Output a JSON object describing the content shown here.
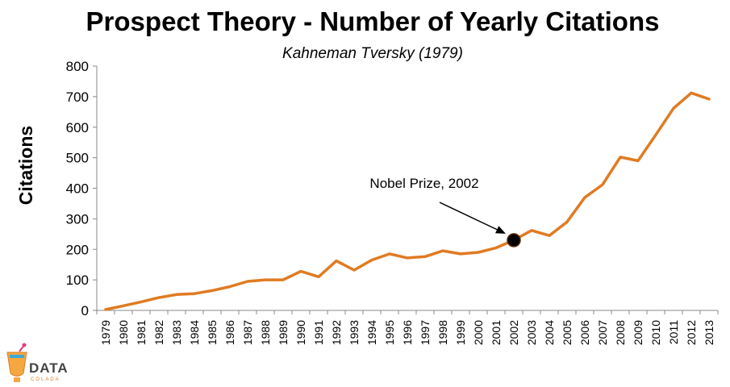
{
  "chart_data": {
    "type": "line",
    "title": "Prospect Theory - Number of Yearly Citations",
    "subtitle": "Kahneman Tversky (1979)",
    "xlabel": "",
    "ylabel": "Citations",
    "ylim": [
      0,
      800
    ],
    "yticks": [
      "0",
      "100",
      "200",
      "300",
      "400",
      "500",
      "600",
      "700",
      "800"
    ],
    "categories": [
      "1979",
      "1980",
      "1981",
      "1982",
      "1983",
      "1984",
      "1985",
      "1986",
      "1987",
      "1988",
      "1989",
      "1990",
      "1991",
      "1992",
      "1993",
      "1994",
      "1995",
      "1996",
      "1997",
      "1998",
      "1999",
      "2000",
      "2001",
      "2002",
      "2003",
      "2004",
      "2005",
      "2006",
      "2007",
      "2008",
      "2009",
      "2010",
      "2011",
      "2012",
      "2013"
    ],
    "series": [
      {
        "name": "Citations",
        "color": "#e07b22",
        "values": [
          3,
          15,
          28,
          42,
          52,
          55,
          65,
          78,
          95,
          100,
          100,
          128,
          110,
          162,
          132,
          165,
          185,
          172,
          176,
          195,
          185,
          190,
          205,
          230,
          262,
          245,
          290,
          370,
          412,
          502,
          490,
          575,
          662,
          712,
          692
        ]
      }
    ],
    "annotation": {
      "text": "Nobel Prize, 2002",
      "category": "2002",
      "value": 230,
      "marker_color": "#000000"
    }
  },
  "logo": {
    "word": "DATA",
    "sub": "COLADA"
  }
}
